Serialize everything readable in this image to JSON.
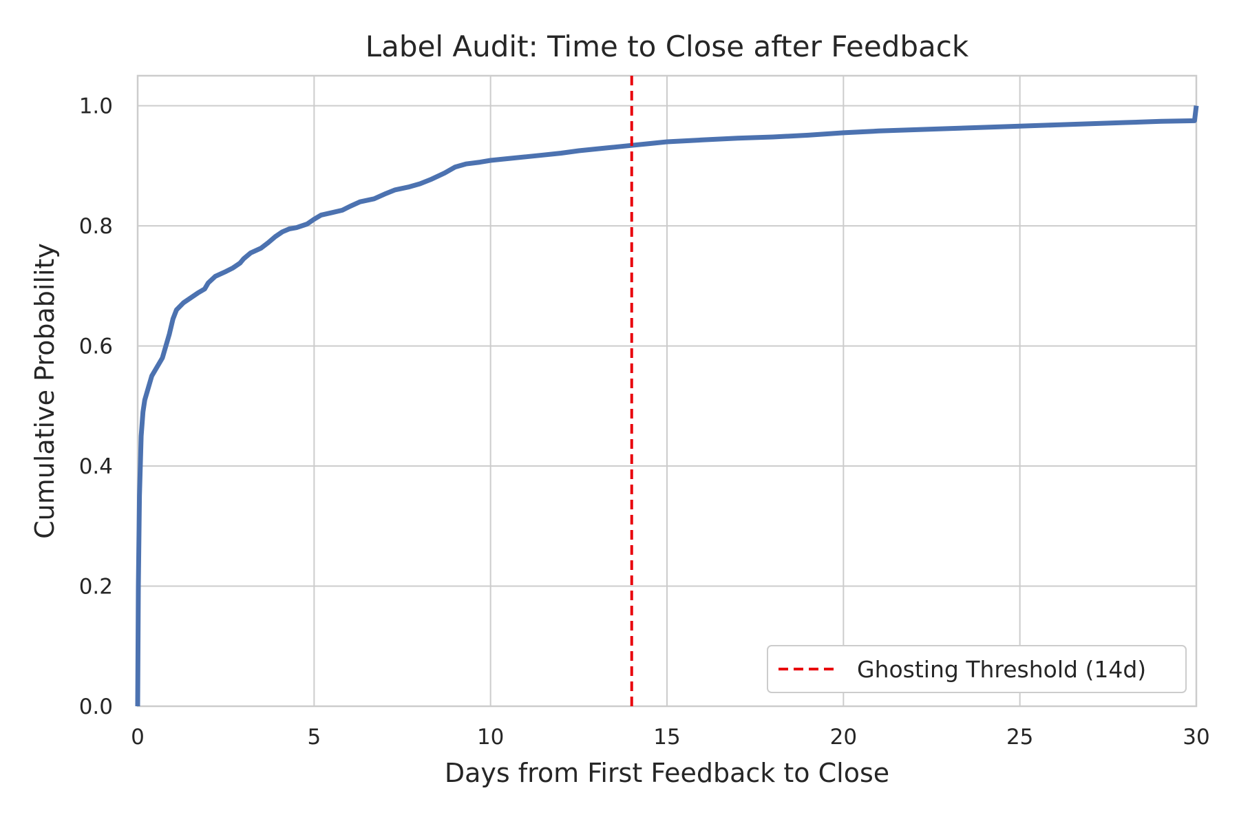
{
  "chart_data": {
    "type": "line",
    "title": "Label Audit: Time to Close after Feedback",
    "xlabel": "Days from First Feedback to Close",
    "ylabel": "Cumulative Probability",
    "xlim": [
      0,
      30
    ],
    "ylim": [
      0,
      1.05
    ],
    "x_ticks": [
      "0",
      "5",
      "10",
      "15",
      "20",
      "25",
      "30"
    ],
    "y_ticks": [
      "0.0",
      "0.2",
      "0.4",
      "0.6",
      "0.8",
      "1.0"
    ],
    "grid": true,
    "legend_position": "lower-right",
    "series": [
      {
        "color": "#4c72b0",
        "x": [
          0,
          0.02,
          0.05,
          0.1,
          0.15,
          0.2,
          0.3,
          0.4,
          0.5,
          0.7,
          0.9,
          1.0,
          1.1,
          1.3,
          1.5,
          1.7,
          1.9,
          2.0,
          2.2,
          2.5,
          2.7,
          2.9,
          3.0,
          3.2,
          3.5,
          3.7,
          3.9,
          4.1,
          4.3,
          4.5,
          4.8,
          5.0,
          5.2,
          5.5,
          5.8,
          6.0,
          6.3,
          6.7,
          7.0,
          7.3,
          7.7,
          8.0,
          8.3,
          8.7,
          9.0,
          9.3,
          9.7,
          10.0,
          10.5,
          11.0,
          11.5,
          12.0,
          12.5,
          13.0,
          13.5,
          14.0,
          14.5,
          15.0,
          16.0,
          17.0,
          18.0,
          19.0,
          20.0,
          21.0,
          22.0,
          23.0,
          24.0,
          25.0,
          26.0,
          27.0,
          28.0,
          29.0,
          29.95,
          30.0
        ],
        "y": [
          0.0,
          0.2,
          0.35,
          0.45,
          0.49,
          0.51,
          0.53,
          0.55,
          0.56,
          0.58,
          0.62,
          0.645,
          0.66,
          0.672,
          0.68,
          0.688,
          0.695,
          0.705,
          0.716,
          0.724,
          0.73,
          0.738,
          0.745,
          0.755,
          0.763,
          0.772,
          0.782,
          0.79,
          0.795,
          0.797,
          0.803,
          0.811,
          0.818,
          0.822,
          0.826,
          0.832,
          0.84,
          0.845,
          0.853,
          0.86,
          0.865,
          0.87,
          0.877,
          0.888,
          0.898,
          0.903,
          0.906,
          0.909,
          0.912,
          0.915,
          0.918,
          0.921,
          0.925,
          0.928,
          0.931,
          0.934,
          0.937,
          0.94,
          0.943,
          0.946,
          0.948,
          0.951,
          0.955,
          0.958,
          0.96,
          0.962,
          0.964,
          0.966,
          0.968,
          0.97,
          0.972,
          0.974,
          0.975,
          1.0
        ]
      }
    ],
    "reference_line": {
      "x": 14,
      "color": "#e8000b",
      "style": "dashed",
      "label": "Ghosting Threshold (14d)"
    }
  }
}
